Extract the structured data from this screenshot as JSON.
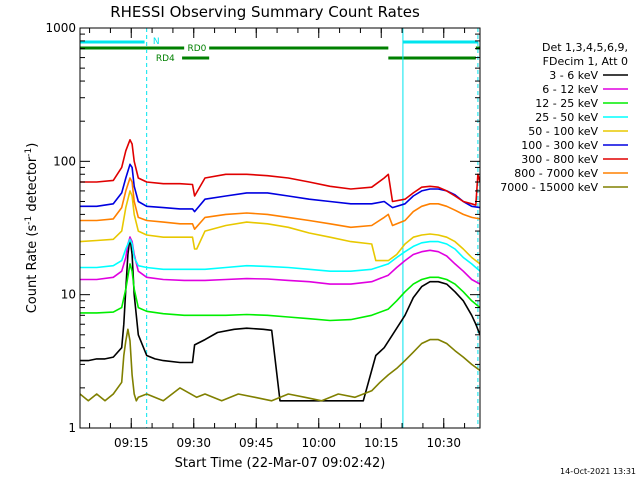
{
  "chart_data": {
    "type": "line",
    "title": "RHESSI Observing Summary Count Rates",
    "xlabel": "Start Time (22-Mar-07 09:02:42)",
    "ylabel": "Count Rate (s⁻¹ detector⁻¹)",
    "y_scale": "log",
    "ylim": [
      1,
      1000
    ],
    "y_ticks": [
      "1",
      "10",
      "100",
      "1000"
    ],
    "xlim_minutes": [
      0,
      96
    ],
    "x_ticks": [
      {
        "label": "09:15",
        "minute": 12.3
      },
      {
        "label": "09:30",
        "minute": 27.3
      },
      {
        "label": "09:45",
        "minute": 42.3
      },
      {
        "label": "10:00",
        "minute": 57.3
      },
      {
        "label": "10:15",
        "minute": 72.3
      },
      {
        "label": "10:30",
        "minute": 87.3
      }
    ],
    "legend_header": [
      "Det 1,3,4,5,6,9,",
      "FDecim 1, Att 0"
    ],
    "legend_placement": "right",
    "footer_date": "14-Oct-2021 13:31",
    "flags": {
      "N": {
        "label": "N",
        "color": "#00e5ee"
      },
      "RD0": {
        "label": "RD0",
        "color": "#008000"
      },
      "RD4": {
        "label": "RD4",
        "color": "#008000"
      }
    },
    "series": [
      {
        "name": "3 - 6 keV",
        "color": "#000000",
        "x": [
          0,
          2,
          4,
          6,
          8,
          10,
          10.5,
          11,
          11.5,
          12,
          12.5,
          13,
          14,
          16,
          18,
          20,
          24,
          27,
          27.5,
          30,
          33,
          37,
          40,
          44,
          46,
          48,
          52,
          56,
          60,
          64,
          68,
          71,
          73,
          75,
          78,
          80,
          82,
          84,
          86,
          88,
          90,
          92,
          94,
          95,
          96
        ],
        "y": [
          3.2,
          3.2,
          3.3,
          3.3,
          3.4,
          4,
          6,
          11,
          20,
          27,
          20,
          10,
          5,
          3.5,
          3.3,
          3.2,
          3.1,
          3.1,
          4.2,
          4.6,
          5.2,
          5.5,
          5.6,
          5.5,
          5.4,
          1.6,
          1.6,
          1.6,
          1.6,
          1.6,
          1.6,
          3.5,
          4,
          5,
          7,
          9.5,
          11.5,
          12.5,
          12.5,
          12,
          10.5,
          9,
          7,
          6,
          5
        ]
      },
      {
        "name": "6 - 12 keV",
        "color": "#e000e0",
        "x": [
          0,
          4,
          8,
          10,
          11,
          11.5,
          12,
          12.5,
          13,
          14,
          16,
          20,
          25,
          30,
          35,
          40,
          45,
          50,
          55,
          60,
          65,
          70,
          74,
          76,
          78,
          80,
          82,
          84,
          86,
          88,
          90,
          92,
          94,
          96
        ],
        "y": [
          13,
          13,
          13.5,
          15,
          19,
          24,
          27,
          25,
          20,
          15,
          13.5,
          13,
          12.8,
          12.8,
          13,
          13.2,
          13.1,
          12.8,
          12.5,
          12,
          12,
          12.5,
          14,
          16,
          18,
          20,
          21,
          21.5,
          21,
          19.5,
          17,
          15,
          13,
          12
        ]
      },
      {
        "name": "12 - 25 keV",
        "color": "#00ee00",
        "x": [
          0,
          4,
          8,
          10,
          11,
          12,
          12.5,
          13,
          14,
          16,
          20,
          25,
          30,
          35,
          40,
          45,
          50,
          55,
          60,
          65,
          70,
          74,
          76,
          78,
          80,
          82,
          84,
          86,
          88,
          90,
          92,
          94,
          96
        ],
        "y": [
          7.3,
          7.3,
          7.4,
          8,
          11,
          17,
          15,
          11,
          8,
          7.5,
          7.2,
          7,
          7,
          7,
          7.1,
          7,
          6.8,
          6.6,
          6.4,
          6.5,
          7,
          7.8,
          9,
          10.5,
          12,
          13,
          13.5,
          13.5,
          13,
          12,
          10.5,
          9,
          8
        ]
      },
      {
        "name": "25 - 50 keV",
        "color": "#00ffff",
        "x": [
          0,
          4,
          8,
          10,
          11,
          12,
          12.5,
          13,
          14,
          16,
          20,
          25,
          30,
          35,
          40,
          45,
          50,
          55,
          60,
          65,
          70,
          74,
          76,
          78,
          80,
          82,
          84,
          86,
          88,
          90,
          92,
          94,
          96
        ],
        "y": [
          16,
          16,
          16.5,
          18,
          22,
          26,
          24,
          19,
          16.5,
          16,
          15.5,
          15.5,
          15.5,
          16,
          16.5,
          16.3,
          16,
          15.5,
          15,
          15,
          15.5,
          17,
          19,
          21,
          23,
          24.5,
          25,
          25,
          24,
          22,
          19,
          17,
          15
        ]
      },
      {
        "name": "50 - 100 keV",
        "color": "#e8c800",
        "x": [
          0,
          4,
          8,
          10,
          11,
          12,
          12.5,
          13,
          14,
          16,
          20,
          24,
          27,
          27.5,
          28,
          30,
          35,
          40,
          45,
          50,
          55,
          60,
          65,
          70,
          71,
          72,
          74,
          76,
          78,
          80,
          82,
          84,
          86,
          88,
          90,
          92,
          94,
          96
        ],
        "y": [
          25,
          25.5,
          26,
          30,
          45,
          60,
          55,
          40,
          30,
          28,
          27,
          27,
          27,
          22,
          22,
          30,
          33,
          35,
          34,
          32,
          29,
          27,
          25,
          24,
          18,
          18,
          18,
          20,
          24,
          27,
          28,
          28.5,
          28,
          27,
          25,
          22,
          19,
          17
        ]
      },
      {
        "name": "100 - 300 keV",
        "color": "#0000e0",
        "x": [
          0,
          4,
          8,
          10,
          11,
          12,
          12.5,
          13,
          14,
          16,
          20,
          24,
          27,
          27.5,
          30,
          35,
          40,
          45,
          50,
          55,
          60,
          65,
          70,
          73,
          75,
          78,
          80,
          82,
          84,
          86,
          88,
          90,
          92,
          94,
          96
        ],
        "y": [
          46,
          46,
          48,
          58,
          75,
          95,
          90,
          65,
          50,
          46,
          45,
          44,
          44,
          42,
          52,
          55,
          58,
          58,
          55,
          52,
          50,
          48,
          48,
          50,
          45,
          48,
          55,
          60,
          62,
          62,
          60,
          56,
          50,
          46,
          45
        ]
      },
      {
        "name": "300 - 800 keV",
        "color": "#e00000",
        "x": [
          0,
          4,
          8,
          10,
          11,
          12,
          12.5,
          13,
          14,
          16,
          20,
          24,
          27,
          27.5,
          30,
          35,
          40,
          45,
          50,
          55,
          60,
          65,
          70,
          73,
          74,
          75,
          78,
          80,
          82,
          84,
          86,
          88,
          90,
          92,
          94,
          95,
          95.5,
          96
        ],
        "y": [
          70,
          70,
          72,
          90,
          120,
          145,
          135,
          100,
          75,
          70,
          68,
          68,
          67,
          55,
          75,
          80,
          80,
          78,
          75,
          70,
          65,
          62,
          64,
          75,
          80,
          50,
          52,
          58,
          64,
          65,
          64,
          60,
          55,
          50,
          48,
          47,
          80,
          70
        ]
      },
      {
        "name": "800 - 7000 keV",
        "color": "#ff8000",
        "x": [
          0,
          4,
          8,
          10,
          11,
          12,
          12.5,
          13,
          14,
          16,
          20,
          24,
          27,
          27.5,
          30,
          35,
          40,
          45,
          50,
          55,
          60,
          65,
          70,
          73,
          74,
          75,
          78,
          80,
          82,
          84,
          86,
          88,
          90,
          92,
          94,
          96
        ],
        "y": [
          36,
          36,
          37,
          45,
          60,
          75,
          70,
          50,
          38,
          36,
          35,
          34,
          34,
          31,
          38,
          40,
          41,
          40,
          38,
          36,
          34,
          32,
          33,
          38,
          40,
          33,
          36,
          42,
          46,
          48,
          48,
          46,
          43,
          40,
          38,
          37
        ]
      },
      {
        "name": "7000 - 15000 keV",
        "color": "#808000",
        "x": [
          0,
          2,
          4,
          6,
          8,
          10,
          10.5,
          11,
          11.5,
          12,
          12.5,
          13,
          13.5,
          14,
          16,
          20,
          24,
          28,
          30,
          34,
          38,
          42,
          46,
          50,
          54,
          58,
          62,
          66,
          70,
          72,
          74,
          76,
          78,
          80,
          82,
          84,
          86,
          88,
          90,
          92,
          94,
          96
        ],
        "y": [
          1.8,
          1.6,
          1.8,
          1.6,
          1.8,
          2.2,
          3.5,
          4.5,
          5.5,
          4.5,
          2.5,
          1.8,
          1.6,
          1.7,
          1.8,
          1.6,
          2,
          1.7,
          1.8,
          1.6,
          1.8,
          1.7,
          1.6,
          1.8,
          1.7,
          1.6,
          1.8,
          1.7,
          1.9,
          2.2,
          2.5,
          2.8,
          3.2,
          3.7,
          4.3,
          4.6,
          4.6,
          4.3,
          3.8,
          3.4,
          3,
          2.7
        ]
      }
    ]
  }
}
